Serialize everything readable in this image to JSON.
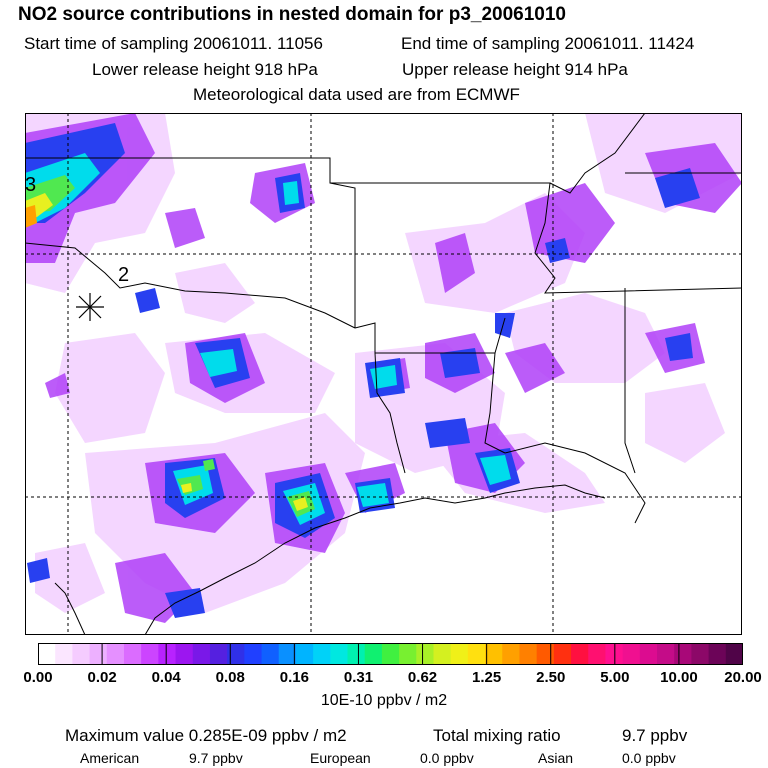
{
  "header": {
    "title": "NO2 source contributions in nested domain for p3_20061010",
    "start_label": "Start time of sampling 20061011. 11056",
    "end_label": "End time of sampling 20061011. 11424",
    "lower_label": "Lower release height  918 hPa",
    "upper_label": "Upper release height  914 hPa",
    "met_label": "Meteorological data used are from ECMWF"
  },
  "map": {
    "markers": [
      "3",
      "2"
    ],
    "colors": {
      "border": "#000000",
      "grid": "#000000",
      "plume_light": "#f0c8ff",
      "plume_purple": "#a020f0",
      "plume_blue": "#3050ff",
      "plume_cyan": "#00e0f0",
      "plume_green": "#30e060",
      "plume_yellow": "#e8f020",
      "plume_orange": "#ffa000"
    }
  },
  "legend": {
    "ticks": [
      "0.00",
      "0.02",
      "0.04",
      "0.08",
      "0.16",
      "0.31",
      "0.62",
      "1.25",
      "2.50",
      "5.00",
      "10.00",
      "20.00"
    ],
    "units": "10E-10 ppbv / m2",
    "colors": [
      "#ffffff",
      "#fbe6ff",
      "#f5ccff",
      "#edb0ff",
      "#e590ff",
      "#db6cff",
      "#cc44ff",
      "#b822ff",
      "#9c16f0",
      "#7a18e8",
      "#5520e0",
      "#3030e8",
      "#2040ff",
      "#1060ff",
      "#0a90ff",
      "#00b4ff",
      "#00d2f8",
      "#00e8e0",
      "#00f0b0",
      "#10f070",
      "#40f040",
      "#78f030",
      "#a8f028",
      "#d4f020",
      "#f0f018",
      "#ffe010",
      "#ffc000",
      "#ffa000",
      "#ff8000",
      "#ff5a00",
      "#ff3010",
      "#ff1040",
      "#ff1070",
      "#ff1090",
      "#f01090",
      "#dc0c90",
      "#c40c88",
      "#a80878",
      "#8c0868",
      "#6c0458",
      "#500448"
    ]
  },
  "stats": {
    "max_label": "Maximum value  0.285E-09 ppbv / m2",
    "total_label": "Total mixing ratio",
    "total_value": "9.7 ppbv",
    "american_label": "American",
    "american_value": "9.7 ppbv",
    "european_label": "European",
    "european_value": "0.0 ppbv",
    "asian_label": "Asian",
    "asian_value": "0.0 ppbv"
  }
}
